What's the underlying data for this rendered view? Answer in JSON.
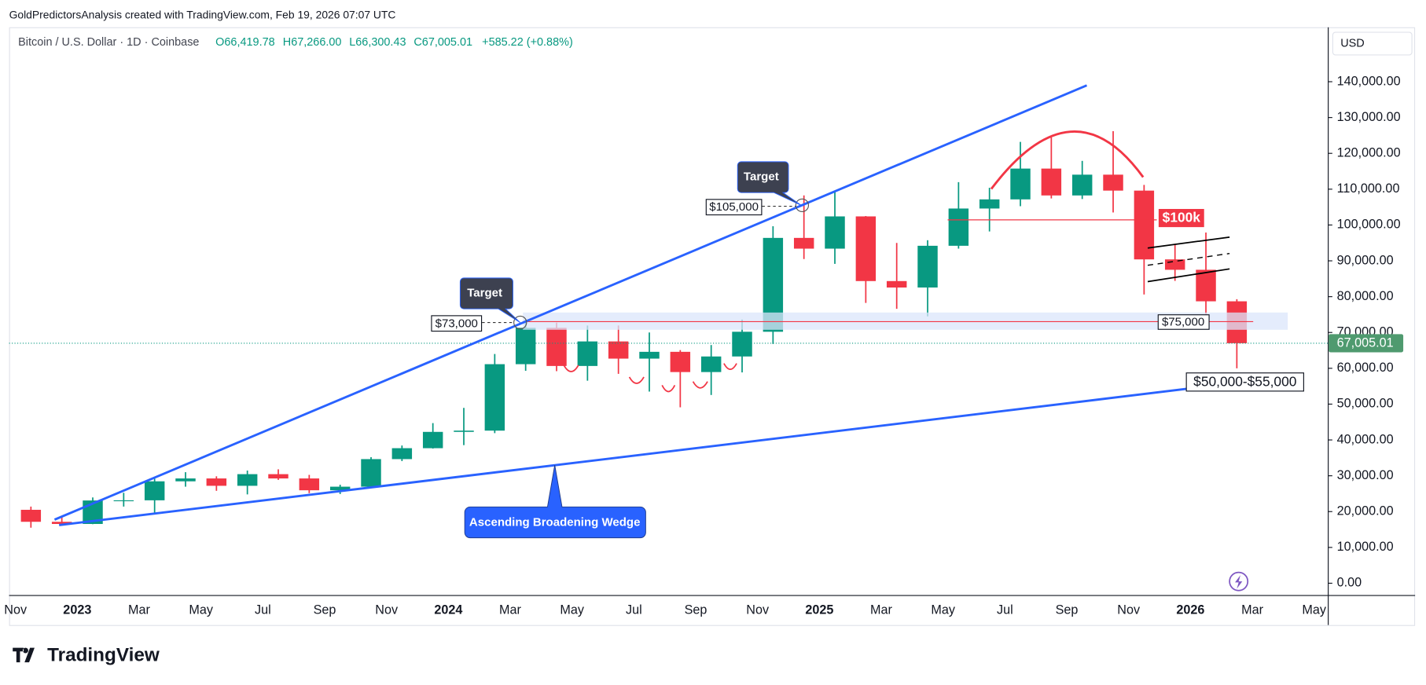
{
  "header": {
    "attribution": "GoldPredictorsAnalysis created with TradingView.com, Feb 19, 2026 07:07 UTC",
    "symbol": "Bitcoin / U.S. Dollar · 1D · Coinbase",
    "open": "O66,419.78",
    "high": "H67,266.00",
    "low": "L66,300.43",
    "close": "C67,005.01",
    "change": "+585.22 (+0.88%)"
  },
  "chart_data": {
    "type": "candlestick",
    "x": [
      "2022-11",
      "2022-12",
      "2023-01",
      "2023-02",
      "2023-03",
      "2023-04",
      "2023-05",
      "2023-06",
      "2023-07",
      "2023-08",
      "2023-09",
      "2023-10",
      "2023-11",
      "2023-12",
      "2024-01",
      "2024-02",
      "2024-03",
      "2024-04",
      "2024-05",
      "2024-06",
      "2024-07",
      "2024-08",
      "2024-09",
      "2024-10",
      "2024-11",
      "2024-12",
      "2025-01",
      "2025-02",
      "2025-03",
      "2025-04",
      "2025-05",
      "2025-06",
      "2025-07",
      "2025-08",
      "2025-09",
      "2025-10",
      "2025-11",
      "2025-12",
      "2026-01",
      "2026-02"
    ],
    "open": [
      20500,
      17150,
      16550,
      23100,
      23150,
      28450,
      29250,
      27200,
      30450,
      29250,
      25950,
      26950,
      34650,
      37700,
      42250,
      42600,
      61150,
      71300,
      60650,
      67500,
      62700,
      64600,
      58950,
      63300,
      70200,
      96400,
      93400,
      102400,
      84350,
      82550,
      94200,
      104600,
      107150,
      115750,
      108250,
      114050,
      109600,
      90400,
      87500,
      78700
    ],
    "high": [
      21400,
      18400,
      23950,
      25250,
      29200,
      31000,
      29850,
      31450,
      31800,
      30250,
      27500,
      35200,
      38450,
      44700,
      48950,
      64000,
      73750,
      72750,
      71950,
      71950,
      70000,
      65100,
      66500,
      73600,
      99650,
      108250,
      109350,
      102500,
      95000,
      95750,
      111950,
      110400,
      123200,
      124450,
      117900,
      126200,
      111200,
      94600,
      97900,
      79300
    ],
    "low": [
      15500,
      16300,
      16500,
      21400,
      19550,
      26950,
      25800,
      24800,
      28850,
      25150,
      24900,
      26550,
      34100,
      37600,
      38550,
      41900,
      59300,
      59200,
      56550,
      58450,
      53500,
      49100,
      52550,
      58850,
      66800,
      90500,
      89150,
      78250,
      76600,
      74500,
      93400,
      98200,
      105250,
      107400,
      107250,
      103500,
      80600,
      84400,
      74500,
      60000
    ],
    "close": [
      17150,
      16550,
      23100,
      23150,
      28450,
      29250,
      27200,
      30450,
      29250,
      25950,
      26950,
      34650,
      37700,
      42250,
      42600,
      61150,
      71300,
      60650,
      67500,
      62700,
      64600,
      58950,
      63300,
      70200,
      96400,
      93400,
      102400,
      84350,
      82550,
      94200,
      104600,
      107150,
      115750,
      108250,
      114050,
      109600,
      90400,
      87500,
      78700,
      67005.01
    ],
    "colors": {
      "up": "#089981",
      "down": "#f23645"
    },
    "currency": "USD",
    "last_price_label": "67,005.01",
    "ylim": [
      -3300,
      155200
    ],
    "yticks": [
      {
        "value": 0,
        "label": "0.00"
      },
      {
        "value": 10000,
        "label": "10,000.00"
      },
      {
        "value": 20000,
        "label": "20,000.00"
      },
      {
        "value": 30000,
        "label": "30,000.00"
      },
      {
        "value": 40000,
        "label": "40,000.00"
      },
      {
        "value": 50000,
        "label": "50,000.00"
      },
      {
        "value": 60000,
        "label": "60,000.00"
      },
      {
        "value": 70000,
        "label": "70,000.00"
      },
      {
        "value": 80000,
        "label": "80,000.00"
      },
      {
        "value": 90000,
        "label": "90,000.00"
      },
      {
        "value": 100000,
        "label": "100,000.00"
      },
      {
        "value": 110000,
        "label": "110,000.00"
      },
      {
        "value": 120000,
        "label": "120,000.00"
      },
      {
        "value": 130000,
        "label": "130,000.00"
      },
      {
        "value": 140000,
        "label": "140,000.00"
      }
    ],
    "xticks": [
      {
        "value": "2022-11",
        "label": "Nov"
      },
      {
        "value": "2023-01",
        "label": "2023"
      },
      {
        "value": "2023-03",
        "label": "Mar"
      },
      {
        "value": "2023-05",
        "label": "May"
      },
      {
        "value": "2023-07",
        "label": "Jul"
      },
      {
        "value": "2023-09",
        "label": "Sep"
      },
      {
        "value": "2023-11",
        "label": "Nov"
      },
      {
        "value": "2024-01",
        "label": "2024"
      },
      {
        "value": "2024-03",
        "label": "Mar"
      },
      {
        "value": "2024-05",
        "label": "May"
      },
      {
        "value": "2024-07",
        "label": "Jul"
      },
      {
        "value": "2024-09",
        "label": "Sep"
      },
      {
        "value": "2024-11",
        "label": "Nov"
      },
      {
        "value": "2025-01",
        "label": "2025"
      },
      {
        "value": "2025-03",
        "label": "Mar"
      },
      {
        "value": "2025-05",
        "label": "May"
      },
      {
        "value": "2025-07",
        "label": "Jul"
      },
      {
        "value": "2025-09",
        "label": "Sep"
      },
      {
        "value": "2025-11",
        "label": "Nov"
      },
      {
        "value": "2026-01",
        "label": "2026"
      },
      {
        "value": "2026-03",
        "label": "Mar"
      },
      {
        "value": "2026-05",
        "label": "May"
      }
    ],
    "annotations": {
      "target_1": "Target",
      "target_2": "Target",
      "level_73k": "$73,000",
      "level_105k": "$105,000",
      "level_100k": "$100k",
      "level_75k": "$75,000",
      "target_zone": "$50,000-$55,000",
      "pattern": "Ascending Broadening Wedge"
    }
  },
  "footer": {
    "logo": "TradingView"
  }
}
